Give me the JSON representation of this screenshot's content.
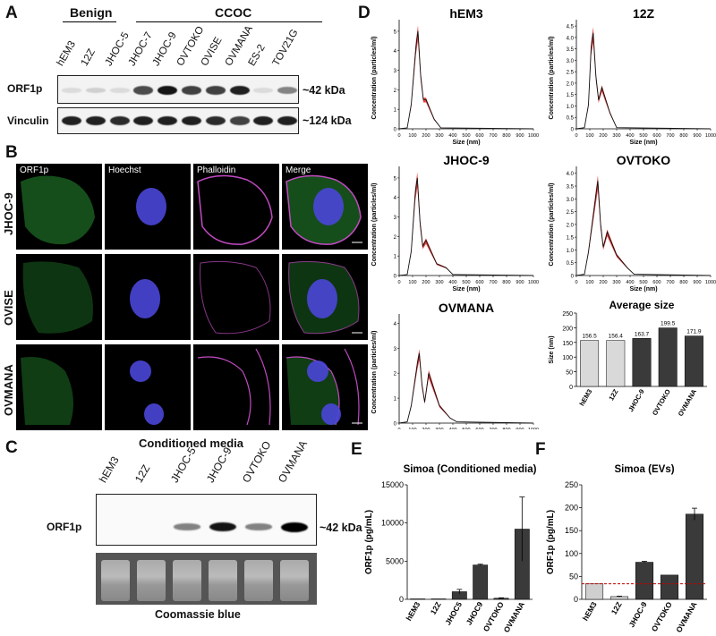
{
  "panel_a": {
    "label": "A",
    "group_benign": "Benign",
    "group_ccoc": "CCOC",
    "lanes": [
      "hEM3",
      "12Z",
      "JHOC-5",
      "JHOC-7",
      "JHOC-9",
      "OVTOKO",
      "OVISE",
      "OVMANA",
      "ES-2",
      "TOV21G"
    ],
    "rows": [
      {
        "name": "ORF1p",
        "size": "~42 kDa",
        "intensity": [
          0.05,
          0.1,
          0.05,
          0.7,
          0.95,
          0.75,
          0.75,
          0.9,
          0.05,
          0.45
        ]
      },
      {
        "name": "Vinculin",
        "size": "~124 kDa",
        "intensity": [
          0.9,
          0.9,
          0.85,
          0.9,
          0.9,
          0.9,
          0.85,
          0.75,
          0.9,
          0.9
        ]
      }
    ]
  },
  "panel_b": {
    "label": "B",
    "channels": [
      "ORF1p",
      "Hoechst",
      "Phalloidin",
      "Merge"
    ],
    "rows": [
      "JHOC-9",
      "OVISE",
      "OVMANA"
    ],
    "colors": {
      "orf1p": "#2fae3a",
      "hoechst": "#4a46d8",
      "phalloidin": "#c24bc2"
    }
  },
  "panel_c": {
    "label": "C",
    "title": "Conditioned media",
    "lanes": [
      "hEM3",
      "12Z",
      "JHOC-5",
      "JHOC-9",
      "OVTOKO",
      "OVMANA"
    ],
    "row_label": "ORF1p",
    "size": "~42 kDa",
    "intensity": [
      0.0,
      0.0,
      0.35,
      0.9,
      0.35,
      1.0
    ],
    "stain_label": "Coomassie blue"
  },
  "panel_d": {
    "label": "D",
    "nta_y_label": "Concentration (particles/ml)",
    "nta_x_label": "Size (nm)",
    "x_ticks": [
      "0",
      "100",
      "200",
      "300",
      "400",
      "500",
      "600",
      "700",
      "800",
      "900",
      "1000"
    ],
    "plots": [
      {
        "name": "hEM3",
        "y_ticks": [
          "0",
          "1",
          "2",
          "3",
          "4",
          "5"
        ],
        "ymax": 5.5,
        "peak": 140,
        "peak_y": 5.0,
        "shoulder": [
          [
            200,
            1.5
          ],
          [
            260,
            0.5
          ]
        ]
      },
      {
        "name": "12Z",
        "y_ticks": [
          "0",
          "0.5",
          "1.0",
          "1.5",
          "2.0",
          "2.5",
          "3.0",
          "3.5",
          "4.0",
          "4.5"
        ],
        "ymax": 4.7,
        "peak": 125,
        "peak_y": 4.2,
        "shoulder": [
          [
            190,
            1.8
          ],
          [
            250,
            0.7
          ]
        ]
      },
      {
        "name": "JHOC-9",
        "y_ticks": [
          "0",
          "1",
          "2",
          "3",
          "4",
          "5"
        ],
        "ymax": 5.5,
        "peak": 135,
        "peak_y": 5.0,
        "shoulder": [
          [
            200,
            1.8
          ],
          [
            280,
            0.6
          ],
          [
            350,
            0.4
          ]
        ]
      },
      {
        "name": "OVTOKO",
        "y_ticks": [
          "0",
          "0.5",
          "1.0",
          "1.5",
          "2.0",
          "2.5",
          "3.0",
          "3.5",
          "4.0"
        ],
        "ymax": 4.2,
        "peak": 160,
        "peak_y": 3.7,
        "shoulder": [
          [
            230,
            1.7
          ],
          [
            300,
            0.8
          ],
          [
            380,
            0.3
          ]
        ]
      },
      {
        "name": "OVMANA",
        "y_ticks": [
          "0",
          "1",
          "2",
          "3",
          "4"
        ],
        "ymax": 4.3,
        "peak": 150,
        "peak_y": 2.8,
        "shoulder": [
          [
            220,
            2.0
          ],
          [
            300,
            0.7
          ],
          [
            380,
            0.2
          ]
        ]
      }
    ]
  },
  "chart_data": [
    {
      "type": "bar",
      "title": "Average size",
      "ylabel": "Size (nm)",
      "categories": [
        "hEM3",
        "12Z",
        "JHOC-9",
        "OVTOKO",
        "OVMANA"
      ],
      "values": [
        156.5,
        156.4,
        163.7,
        199.5,
        171.9
      ],
      "value_labels": [
        "156.5",
        "156.4",
        "163.7",
        "199.5",
        "171.9"
      ],
      "ylim": [
        0,
        250
      ],
      "y_ticks": [
        "0",
        "50",
        "100",
        "150",
        "200",
        "250"
      ],
      "colors": [
        "#d9d9d9",
        "#d9d9d9",
        "#3a3a3a",
        "#3a3a3a",
        "#3a3a3a"
      ]
    },
    {
      "type": "bar",
      "panel": "E",
      "title": "Simoa (Conditioned media)",
      "ylabel": "ORF1p (pg/mL)",
      "categories": [
        "hEM3",
        "12Z",
        "JHOC5",
        "JHOC9",
        "OVTOKO",
        "OVMANA"
      ],
      "values": [
        60,
        60,
        1000,
        4500,
        150,
        9200
      ],
      "errors": [
        0,
        0,
        300,
        100,
        50,
        4200
      ],
      "ylim": [
        0,
        15000
      ],
      "y_ticks": [
        "0",
        "5000",
        "10000",
        "15000"
      ],
      "colors": [
        "#3a3a3a",
        "#3a3a3a",
        "#3a3a3a",
        "#3a3a3a",
        "#3a3a3a",
        "#3a3a3a"
      ]
    },
    {
      "type": "bar",
      "panel": "F",
      "title": "Simoa (EVs)",
      "ylabel": "ORF1p (pg/mL)",
      "categories": [
        "hEM3",
        "12Z",
        "JHOC-9",
        "OVTOKO",
        "OVMANA"
      ],
      "values": [
        34,
        6,
        81,
        53,
        186
      ],
      "errors": [
        0,
        1,
        2,
        0,
        13
      ],
      "ylim": [
        0,
        250
      ],
      "y_ticks": [
        "0",
        "50",
        "100",
        "150",
        "200",
        "250"
      ],
      "threshold": 34,
      "colors": [
        "#cfcfcf",
        "#cfcfcf",
        "#3a3a3a",
        "#3a3a3a",
        "#3a3a3a"
      ]
    }
  ],
  "panel_e": {
    "label": "E"
  },
  "panel_f": {
    "label": "F"
  }
}
